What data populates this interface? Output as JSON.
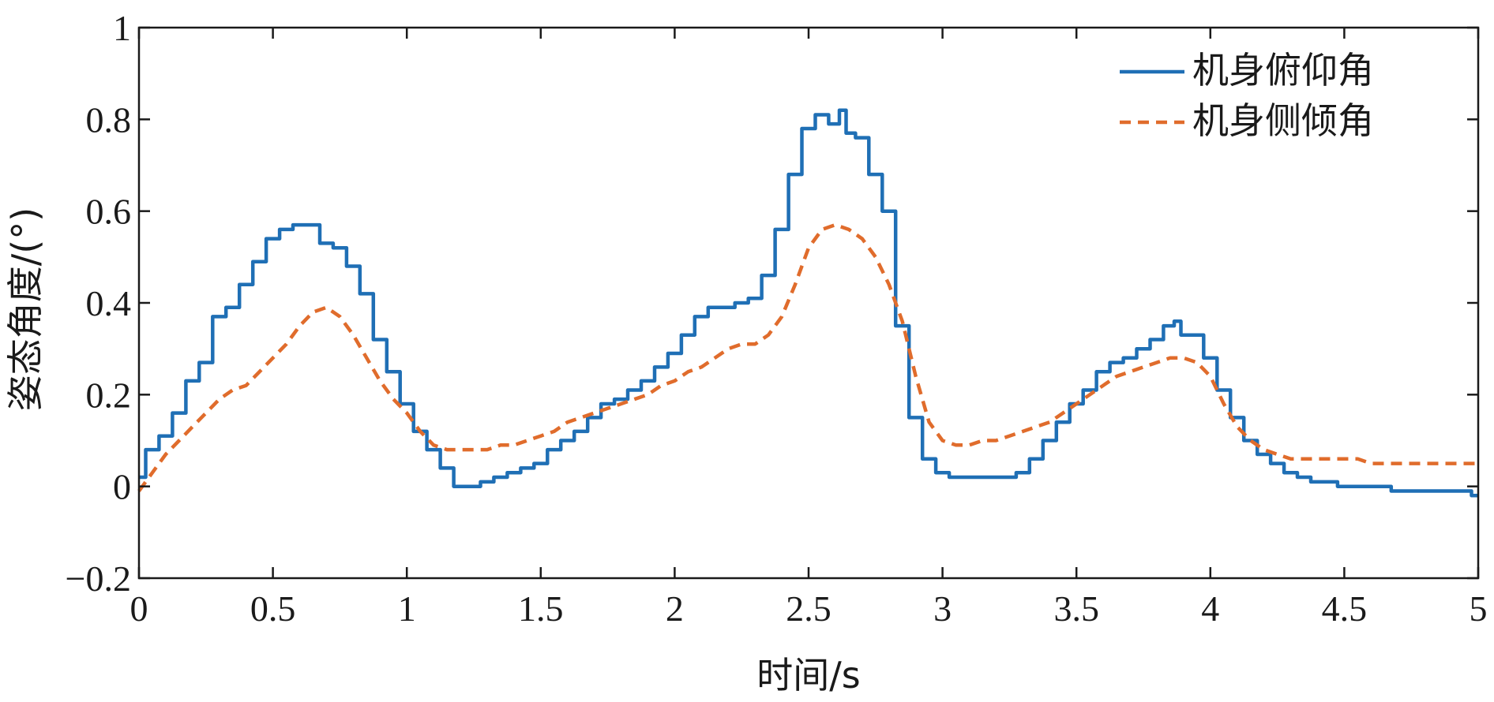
{
  "chart_data": {
    "type": "line",
    "xlabel": "时间/s",
    "ylabel": "姿态角度/(°)",
    "xlim": [
      0,
      5
    ],
    "ylim": [
      -0.2,
      1
    ],
    "xticks": [
      "0",
      "0.5",
      "1",
      "1.5",
      "2",
      "2.5",
      "3",
      "3.5",
      "4",
      "4.5",
      "5"
    ],
    "yticks": [
      "−0.2",
      "0",
      "0.2",
      "0.4",
      "0.6",
      "0.8",
      "1"
    ],
    "grid": false,
    "legend_position": "top-right",
    "series": [
      {
        "name": "机身俯仰角",
        "color": "#1f6fb5",
        "style": "solid",
        "x": [
          0,
          0.05,
          0.1,
          0.15,
          0.2,
          0.25,
          0.3,
          0.35,
          0.4,
          0.45,
          0.5,
          0.55,
          0.6,
          0.65,
          0.7,
          0.75,
          0.8,
          0.85,
          0.9,
          0.95,
          1.0,
          1.05,
          1.1,
          1.15,
          1.2,
          1.25,
          1.3,
          1.35,
          1.4,
          1.45,
          1.5,
          1.55,
          1.6,
          1.65,
          1.7,
          1.75,
          1.8,
          1.85,
          1.9,
          1.95,
          2.0,
          2.05,
          2.1,
          2.15,
          2.2,
          2.25,
          2.3,
          2.35,
          2.4,
          2.45,
          2.5,
          2.55,
          2.6,
          2.63,
          2.65,
          2.7,
          2.75,
          2.8,
          2.85,
          2.9,
          2.95,
          3.0,
          3.05,
          3.1,
          3.15,
          3.2,
          3.25,
          3.3,
          3.35,
          3.4,
          3.45,
          3.5,
          3.55,
          3.6,
          3.65,
          3.7,
          3.75,
          3.8,
          3.85,
          3.88,
          3.9,
          3.95,
          4.0,
          4.05,
          4.1,
          4.15,
          4.2,
          4.25,
          4.3,
          4.35,
          4.4,
          4.45,
          4.5,
          4.55,
          4.6,
          4.65,
          4.7,
          4.75,
          4.8,
          4.85,
          4.9,
          4.95,
          5.0
        ],
        "y": [
          0.02,
          0.08,
          0.11,
          0.16,
          0.23,
          0.27,
          0.37,
          0.39,
          0.44,
          0.49,
          0.54,
          0.56,
          0.57,
          0.57,
          0.53,
          0.52,
          0.48,
          0.42,
          0.32,
          0.25,
          0.18,
          0.12,
          0.08,
          0.04,
          0.0,
          0.0,
          0.01,
          0.02,
          0.03,
          0.04,
          0.05,
          0.08,
          0.1,
          0.12,
          0.15,
          0.18,
          0.19,
          0.21,
          0.23,
          0.26,
          0.29,
          0.33,
          0.37,
          0.39,
          0.39,
          0.4,
          0.41,
          0.46,
          0.56,
          0.68,
          0.78,
          0.81,
          0.79,
          0.82,
          0.77,
          0.76,
          0.68,
          0.6,
          0.35,
          0.15,
          0.06,
          0.03,
          0.02,
          0.02,
          0.02,
          0.02,
          0.02,
          0.03,
          0.06,
          0.1,
          0.14,
          0.18,
          0.21,
          0.25,
          0.27,
          0.28,
          0.3,
          0.32,
          0.35,
          0.36,
          0.33,
          0.33,
          0.28,
          0.21,
          0.15,
          0.1,
          0.07,
          0.05,
          0.03,
          0.02,
          0.01,
          0.01,
          0.0,
          0.0,
          0.0,
          0.0,
          -0.01,
          -0.01,
          -0.01,
          -0.01,
          -0.01,
          -0.01,
          -0.02
        ]
      },
      {
        "name": "机身侧倾角",
        "color": "#e06c2c",
        "style": "dashed",
        "x": [
          0,
          0.05,
          0.1,
          0.15,
          0.2,
          0.25,
          0.3,
          0.35,
          0.4,
          0.45,
          0.5,
          0.55,
          0.6,
          0.65,
          0.7,
          0.75,
          0.8,
          0.85,
          0.9,
          0.95,
          1.0,
          1.05,
          1.1,
          1.15,
          1.2,
          1.25,
          1.3,
          1.35,
          1.4,
          1.45,
          1.5,
          1.55,
          1.6,
          1.65,
          1.7,
          1.75,
          1.8,
          1.85,
          1.9,
          1.95,
          2.0,
          2.05,
          2.1,
          2.15,
          2.2,
          2.25,
          2.3,
          2.35,
          2.4,
          2.45,
          2.5,
          2.55,
          2.6,
          2.65,
          2.7,
          2.75,
          2.8,
          2.85,
          2.9,
          2.95,
          3.0,
          3.05,
          3.1,
          3.15,
          3.2,
          3.25,
          3.3,
          3.35,
          3.4,
          3.45,
          3.5,
          3.55,
          3.6,
          3.65,
          3.7,
          3.75,
          3.8,
          3.85,
          3.9,
          3.95,
          4.0,
          4.05,
          4.1,
          4.15,
          4.2,
          4.25,
          4.3,
          4.35,
          4.4,
          4.45,
          4.5,
          4.55,
          4.6,
          4.65,
          4.7,
          4.75,
          4.8,
          4.85,
          4.9,
          4.95,
          5.0
        ],
        "y": [
          -0.01,
          0.03,
          0.07,
          0.1,
          0.13,
          0.16,
          0.19,
          0.21,
          0.22,
          0.25,
          0.28,
          0.31,
          0.35,
          0.38,
          0.39,
          0.37,
          0.33,
          0.28,
          0.23,
          0.19,
          0.16,
          0.12,
          0.09,
          0.08,
          0.08,
          0.08,
          0.08,
          0.09,
          0.09,
          0.1,
          0.11,
          0.12,
          0.14,
          0.15,
          0.16,
          0.17,
          0.18,
          0.19,
          0.2,
          0.22,
          0.23,
          0.25,
          0.26,
          0.28,
          0.3,
          0.31,
          0.31,
          0.33,
          0.37,
          0.44,
          0.52,
          0.56,
          0.57,
          0.56,
          0.54,
          0.5,
          0.44,
          0.36,
          0.24,
          0.14,
          0.1,
          0.09,
          0.09,
          0.1,
          0.1,
          0.11,
          0.12,
          0.13,
          0.14,
          0.16,
          0.18,
          0.2,
          0.22,
          0.24,
          0.25,
          0.26,
          0.27,
          0.28,
          0.28,
          0.27,
          0.24,
          0.18,
          0.13,
          0.1,
          0.08,
          0.07,
          0.06,
          0.06,
          0.06,
          0.06,
          0.06,
          0.06,
          0.05,
          0.05,
          0.05,
          0.05,
          0.05,
          0.05,
          0.05,
          0.05,
          0.05
        ]
      }
    ]
  }
}
